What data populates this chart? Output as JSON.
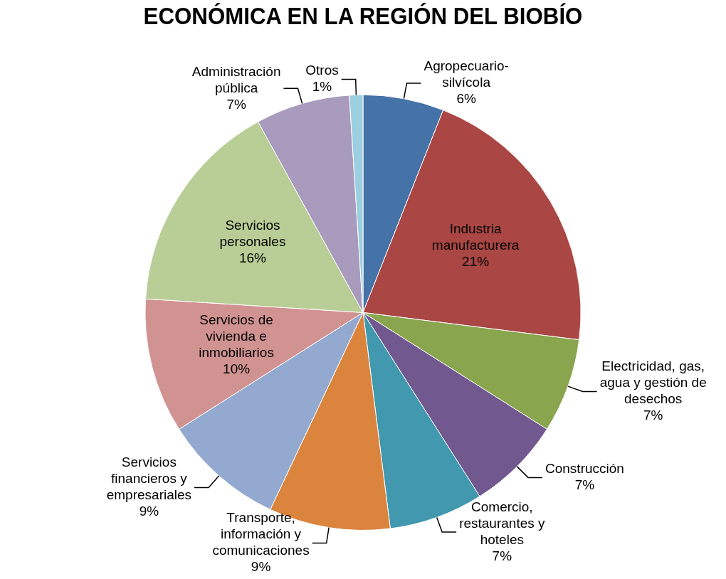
{
  "chart_data": {
    "type": "pie",
    "title": "ECONÓMICA EN LA REGIÓN DEL BIOBÍO",
    "categories": [
      "Agropecuario-silvícola",
      "Industria manufacturera",
      "Electricidad, gas, agua y gestión de desechos",
      "Construcción",
      "Comercio, restaurantes y hoteles",
      "Transporte, información y comunicaciones",
      "Servicios financieros y empresariales",
      "Servicios de vivienda e inmobiliarios",
      "Servicios personales",
      "Administración pública",
      "Otros"
    ],
    "values": [
      6,
      21,
      7,
      7,
      7,
      9,
      9,
      10,
      16,
      7,
      1
    ],
    "colors": [
      "#4572a7",
      "#aa4643",
      "#89a54e",
      "#71588f",
      "#4198af",
      "#db843d",
      "#93a9cf",
      "#d19392",
      "#b9cd96",
      "#a99bbd",
      "#9ccfdf"
    ],
    "value_labels": [
      "6%",
      "21%",
      "7%",
      "7%",
      "7%",
      "9%",
      "9%",
      "10%",
      "16%",
      "7%",
      "1%"
    ],
    "legend": false
  }
}
